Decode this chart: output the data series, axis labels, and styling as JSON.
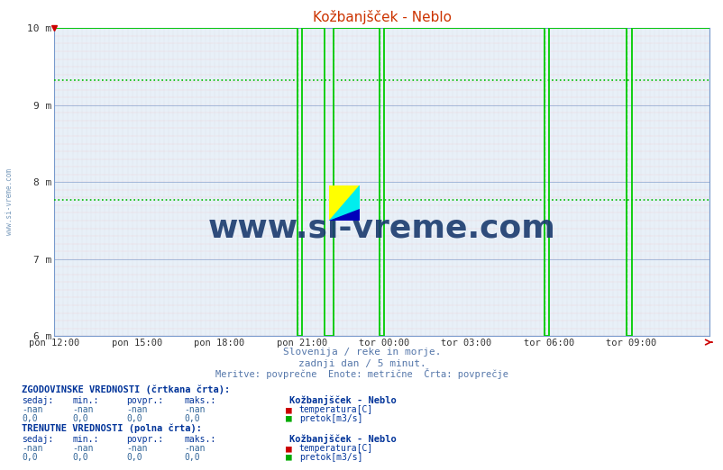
{
  "title": "Kožbanjšček - Neblo",
  "bg_color": "#e8f0f8",
  "fig_bg_color": "#ffffff",
  "ylim": [
    6,
    10
  ],
  "yticks": [
    6,
    7,
    8,
    9,
    10
  ],
  "ytick_labels": [
    "6 m",
    "7 m",
    "8 m",
    "9 m",
    "10 m"
  ],
  "xtick_labels": [
    "pon 12:00",
    "pon 15:00",
    "pon 18:00",
    "pon 21:00",
    "tor 00:00",
    "tor 03:00",
    "tor 06:00",
    "tor 09:00"
  ],
  "xtick_positions": [
    0,
    18,
    36,
    54,
    72,
    90,
    108,
    126
  ],
  "total_points": 144,
  "line_color_green": "#00cc00",
  "historical_line1": 9.32,
  "historical_line2": 7.77,
  "subtitle1": "Slovenija / reke in morje.",
  "subtitle2": "zadnji dan / 5 minut.",
  "subtitle3": "Meritve: povprečne  Enote: metrične  Črta: povprečje",
  "text_color_blue": "#4466aa",
  "text_color_dark": "#003399",
  "text_color_value": "#336699",
  "watermark": "www.si-vreme.com",
  "watermark_color": "#1a3a6e",
  "flow_x": [
    0,
    53,
    53,
    54,
    54,
    59,
    59,
    61,
    61,
    71,
    71,
    72,
    72,
    107,
    107,
    108,
    108,
    125,
    125,
    126,
    126,
    143
  ],
  "flow_y": [
    10,
    10,
    6,
    6,
    10,
    10,
    6,
    6,
    10,
    10,
    6,
    6,
    10,
    10,
    6,
    6,
    10,
    10,
    6,
    6,
    10,
    10
  ],
  "vlines": [
    {
      "x": 53,
      "color": "#00aa00",
      "ls": "--",
      "lw": 0.8
    },
    {
      "x": 61,
      "color": "#777777",
      "ls": "--",
      "lw": 0.6
    },
    {
      "x": 71,
      "color": "#00aa00",
      "ls": "--",
      "lw": 0.8
    },
    {
      "x": 107,
      "color": "#00aa00",
      "ls": "--",
      "lw": 0.8
    },
    {
      "x": 125,
      "color": "#00aa00",
      "ls": "--",
      "lw": 0.8
    }
  ]
}
